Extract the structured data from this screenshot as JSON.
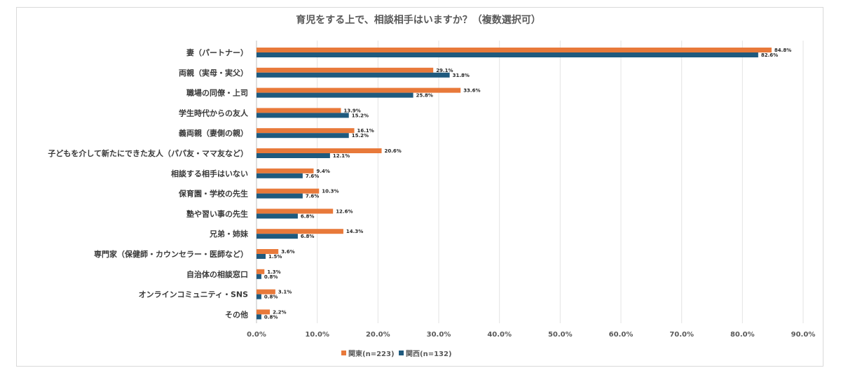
{
  "chart_data": {
    "type": "bar",
    "orientation": "horizontal",
    "title": "育児をする上で、相談相手はいますか？（複数選択可）",
    "categories": [
      "妻（パートナー）",
      "両親（実母・実父）",
      "職場の同僚・上司",
      "学生時代からの友人",
      "義両親（妻側の親）",
      "子どもを介して新たにできた友人（パパ友・ママ友など）",
      "相談する相手はいない",
      "保育園・学校の先生",
      "塾や習い事の先生",
      "兄弟・姉妹",
      "専門家（保健師・カウンセラー・医師など）",
      "自治体の相談窓口",
      "オンラインコミュニティ・SNS",
      "その他"
    ],
    "series": [
      {
        "name": "関東(n=223)",
        "color": "#e8793a",
        "values": [
          84.8,
          29.1,
          33.6,
          13.9,
          16.1,
          20.6,
          9.4,
          10.3,
          12.6,
          14.3,
          3.6,
          1.3,
          3.1,
          2.2
        ],
        "labels": [
          "84.8%",
          "29.1%",
          "33.6%",
          "13.9%",
          "16.1%",
          "20.6%",
          "9.4%",
          "10.3%",
          "12.6%",
          "14.3%",
          "3.6%",
          "1.3%",
          "3.1%",
          "2.2%"
        ]
      },
      {
        "name": "関西(n=132)",
        "color": "#1f5a7e",
        "values": [
          82.6,
          31.8,
          25.8,
          15.2,
          15.2,
          12.1,
          7.6,
          7.6,
          6.8,
          6.8,
          1.5,
          0.8,
          0.8,
          0.8
        ],
        "labels": [
          "82.6%",
          "31.8%",
          "25.8%",
          "15.2%",
          "15.2%",
          "12.1%",
          "7.6%",
          "7.6%",
          "6.8%",
          "6.8%",
          "1.5%",
          "0.8%",
          "0.8%",
          "0.8%"
        ]
      }
    ],
    "xlim": [
      0,
      90
    ],
    "xticks": [
      "0.0%",
      "10.0%",
      "20.0%",
      "30.0%",
      "40.0%",
      "50.0%",
      "60.0%",
      "70.0%",
      "80.0%",
      "90.0%"
    ],
    "grid": "vertical",
    "legend_position": "bottom"
  }
}
